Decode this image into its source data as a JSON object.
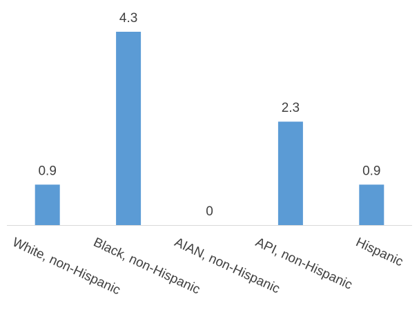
{
  "chart_data": {
    "type": "bar",
    "categories": [
      "White, non-Hispanic",
      "Black, non-Hispanic",
      "AIAN, non-Hispanic",
      "API, non-Hispanic",
      "Hispanic"
    ],
    "values": [
      0.9,
      4.3,
      0,
      2.3,
      0.9
    ],
    "data_labels": [
      "0.9",
      "4.3",
      "0",
      "2.3",
      "0.9"
    ],
    "title": "",
    "xlabel": "",
    "ylabel": "",
    "ylim": [
      0,
      4.3
    ],
    "grid": false,
    "legend": "none",
    "colors": {
      "bar": "#5b9bd5",
      "axis": "#d9d9d9",
      "text": "#404040"
    }
  }
}
